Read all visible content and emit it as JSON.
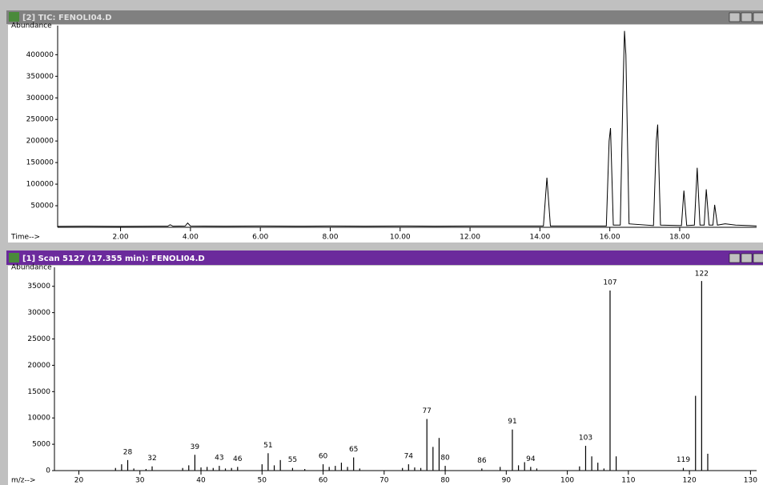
{
  "chart_data": [
    {
      "type": "line",
      "title": "[2] TIC: FENOLI04.D",
      "y_label": "Abundance",
      "x_label": "Time-->",
      "color": "#000000",
      "x": [
        0.2,
        1,
        2,
        3,
        3.35,
        3.42,
        3.5,
        3.85,
        3.92,
        4.0,
        5,
        6,
        7,
        8,
        9,
        10,
        11,
        12,
        13,
        14.1,
        14.2,
        14.3,
        15.9,
        15.98,
        16.02,
        16.1,
        16.3,
        16.38,
        16.42,
        16.46,
        16.55,
        17.25,
        17.33,
        17.37,
        17.45,
        18.05,
        18.12,
        18.2,
        18.42,
        18.5,
        18.58,
        18.7,
        18.76,
        18.84,
        18.95,
        19.0,
        19.08,
        19.3,
        19.6,
        20.0,
        20.2
      ],
      "values": [
        2000,
        2500,
        2000,
        2500,
        2500,
        6000,
        2500,
        3000,
        10000,
        3000,
        2500,
        3000,
        2500,
        3000,
        2500,
        3000,
        2500,
        3000,
        3000,
        3000,
        115000,
        3000,
        3000,
        200000,
        230000,
        5000,
        5000,
        330000,
        455000,
        400000,
        8000,
        4000,
        200000,
        238000,
        5000,
        4000,
        85000,
        4000,
        5000,
        138000,
        5000,
        5000,
        88000,
        5000,
        5000,
        52000,
        5000,
        8000,
        5000,
        4000,
        3000
      ],
      "xlim": [
        0.2,
        20.2
      ],
      "ylim": [
        0,
        460000
      ],
      "xticks": [
        {
          "value": 2,
          "label": "2.00"
        },
        {
          "value": 4,
          "label": "4.00"
        },
        {
          "value": 6,
          "label": "6.00"
        },
        {
          "value": 8,
          "label": "8.00"
        },
        {
          "value": 10,
          "label": "10.00"
        },
        {
          "value": 12,
          "label": "12.00"
        },
        {
          "value": 14,
          "label": "14.00"
        },
        {
          "value": 16,
          "label": "16.00"
        },
        {
          "value": 18,
          "label": "18.00"
        }
      ],
      "yticks": [
        50000,
        100000,
        150000,
        200000,
        250000,
        300000,
        350000,
        400000
      ]
    },
    {
      "type": "bar",
      "title": "[1] Scan 5127 (17.355 min): FENOLI04.D",
      "y_label": "Abundance",
      "x_label": "m/z-->",
      "color": "#000000",
      "x": [
        26,
        27,
        28,
        29,
        31,
        32,
        37,
        38,
        39,
        40,
        41,
        42,
        43,
        44,
        45,
        46,
        50,
        51,
        52,
        53,
        55,
        57,
        60,
        61,
        62,
        63,
        64,
        65,
        66,
        73,
        74,
        75,
        76,
        77,
        78,
        79,
        80,
        86,
        89,
        91,
        92,
        93,
        94,
        95,
        102,
        103,
        104,
        105,
        106,
        107,
        108,
        119,
        121,
        122,
        123
      ],
      "values": [
        500,
        1200,
        2000,
        400,
        300,
        800,
        500,
        1000,
        3000,
        600,
        700,
        500,
        900,
        400,
        500,
        700,
        1200,
        3300,
        1000,
        2000,
        500,
        300,
        1200,
        700,
        900,
        1500,
        700,
        2500,
        400,
        500,
        1200,
        600,
        500,
        9800,
        4500,
        6200,
        900,
        400,
        700,
        7800,
        1000,
        1600,
        700,
        400,
        800,
        4700,
        2700,
        1500,
        400,
        34200,
        2700,
        500,
        14200,
        36000,
        3200
      ],
      "labels": [
        null,
        null,
        28,
        null,
        null,
        32,
        null,
        null,
        39,
        null,
        null,
        null,
        43,
        null,
        null,
        46,
        null,
        51,
        null,
        null,
        55,
        null,
        60,
        null,
        null,
        null,
        null,
        65,
        null,
        null,
        74,
        null,
        null,
        77,
        null,
        null,
        80,
        86,
        null,
        91,
        null,
        null,
        94,
        null,
        null,
        103,
        null,
        null,
        null,
        107,
        null,
        119,
        null,
        122,
        null
      ],
      "xlim": [
        16,
        131
      ],
      "ylim": [
        0,
        38000
      ],
      "xticks": [
        20,
        30,
        40,
        50,
        60,
        70,
        80,
        90,
        100,
        110,
        120,
        130
      ],
      "yticks": [
        0,
        5000,
        10000,
        15000,
        20000,
        25000,
        30000,
        35000
      ]
    }
  ]
}
